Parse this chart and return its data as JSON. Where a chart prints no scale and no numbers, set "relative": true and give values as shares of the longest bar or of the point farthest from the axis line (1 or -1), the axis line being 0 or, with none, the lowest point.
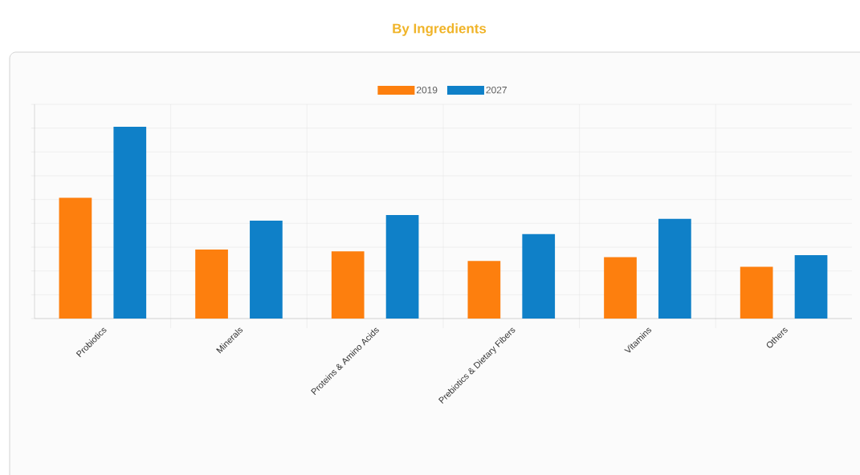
{
  "chart_data": {
    "type": "bar",
    "title": "By Ingredients",
    "relative": true,
    "categories": [
      "Probiotics",
      "Minerals",
      "Proteins & Amino Acids",
      "Prebiotics & Dietary Fibers",
      "Vitamins",
      "Others"
    ],
    "series": [
      {
        "name": "2019",
        "color": "#fd7f0e",
        "values": [
          0.63,
          0.36,
          0.35,
          0.3,
          0.32,
          0.27
        ]
      },
      {
        "name": "2027",
        "color": "#0f80c8",
        "values": [
          1,
          0.51,
          0.54,
          0.44,
          0.52,
          0.33
        ]
      }
    ],
    "grid": true,
    "legend": "top"
  }
}
